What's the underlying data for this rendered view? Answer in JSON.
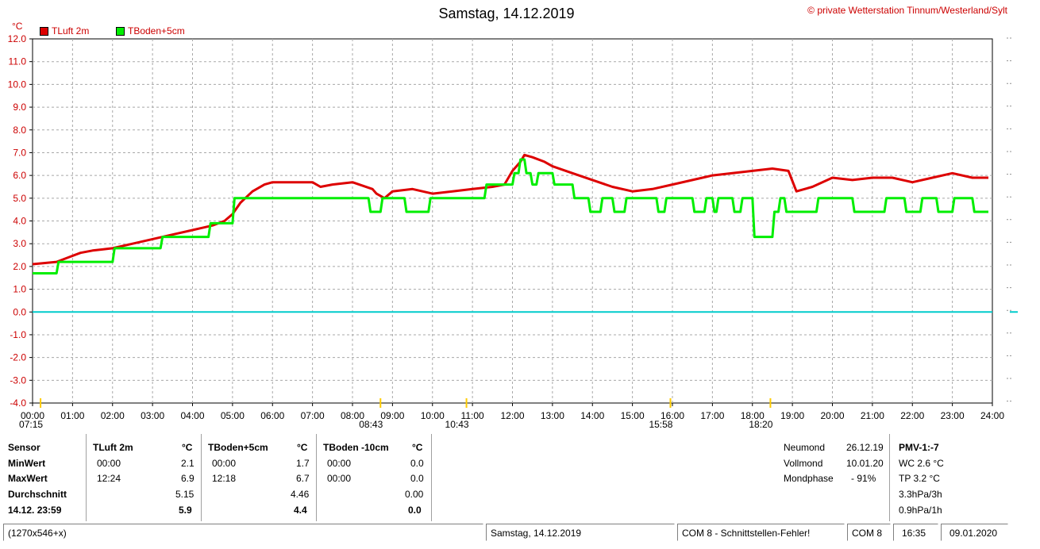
{
  "header": {
    "title": "Samstag, 14.12.2019",
    "copyright": "© private Wetterstation Tinnum/Westerland/Sylt",
    "unit": "°C"
  },
  "legend": [
    {
      "label": "TLuft 2m",
      "color": "#dd0000"
    },
    {
      "label": "TBoden+5cm",
      "color": "#00ee00"
    }
  ],
  "chart_data": {
    "type": "line",
    "title": "Samstag, 14.12.2019",
    "ylabel": "°C",
    "ylim": [
      -4.0,
      12.0
    ],
    "xlim": [
      0,
      24
    ],
    "y_ticks": [
      "12.0",
      "11.0",
      "10.0",
      "9.0",
      "8.0",
      "7.0",
      "6.0",
      "5.0",
      "4.0",
      "3.0",
      "2.0",
      "1.0",
      "0.0",
      "-1.0",
      "-2.0",
      "-3.0",
      "-4.0"
    ],
    "x_ticks": [
      "00:00",
      "01:00",
      "02:00",
      "03:00",
      "04:00",
      "05:00",
      "06:00",
      "07:00",
      "08:00",
      "09:00",
      "10:00",
      "11:00",
      "12:00",
      "13:00",
      "14:00",
      "15:00",
      "16:00",
      "17:00",
      "18:00",
      "19:00",
      "20:00",
      "21:00",
      "22:00",
      "23:00",
      "24:00"
    ],
    "grid": true,
    "zero_line_color": "#00cccc",
    "series": [
      {
        "name": "TLuft 2m",
        "color": "#dd0000",
        "x": [
          0,
          0.6,
          0.9,
          1.2,
          1.5,
          2.0,
          2.5,
          3.0,
          3.5,
          4.0,
          4.5,
          4.8,
          5.0,
          5.2,
          5.5,
          5.8,
          6.0,
          6.5,
          7.0,
          7.2,
          7.5,
          8.0,
          8.5,
          8.6,
          8.8,
          9.0,
          9.5,
          10.0,
          10.5,
          11.0,
          11.5,
          11.8,
          12.0,
          12.2,
          12.3,
          12.5,
          12.8,
          13.0,
          13.5,
          14.0,
          14.5,
          15.0,
          15.5,
          16.0,
          16.5,
          17.0,
          17.5,
          18.0,
          18.5,
          18.9,
          19.1,
          19.5,
          20.0,
          20.5,
          21.0,
          21.5,
          22.0,
          22.5,
          23.0,
          23.5,
          23.9
        ],
        "values": [
          2.1,
          2.2,
          2.4,
          2.6,
          2.7,
          2.8,
          3.0,
          3.2,
          3.4,
          3.6,
          3.8,
          4.0,
          4.3,
          4.8,
          5.3,
          5.6,
          5.7,
          5.7,
          5.7,
          5.5,
          5.6,
          5.7,
          5.4,
          5.2,
          5.0,
          5.3,
          5.4,
          5.2,
          5.3,
          5.4,
          5.5,
          5.6,
          6.2,
          6.6,
          6.9,
          6.8,
          6.6,
          6.4,
          6.1,
          5.8,
          5.5,
          5.3,
          5.4,
          5.6,
          5.8,
          6.0,
          6.1,
          6.2,
          6.3,
          6.2,
          5.3,
          5.5,
          5.9,
          5.8,
          5.9,
          5.9,
          5.7,
          5.9,
          6.1,
          5.9,
          5.9
        ]
      },
      {
        "name": "TBoden+5cm",
        "color": "#00ee00",
        "x": [
          0,
          0.6,
          0.65,
          2.0,
          2.05,
          3.2,
          3.25,
          4.4,
          4.45,
          5.0,
          5.05,
          8.4,
          8.45,
          8.7,
          8.75,
          9.3,
          9.35,
          9.9,
          9.95,
          11.3,
          11.35,
          12.0,
          12.05,
          12.15,
          12.2,
          12.3,
          12.35,
          12.45,
          12.5,
          12.6,
          12.65,
          13.0,
          13.05,
          13.5,
          13.55,
          13.9,
          13.95,
          14.2,
          14.25,
          14.5,
          14.55,
          14.8,
          14.85,
          15.6,
          15.65,
          15.8,
          15.85,
          16.5,
          16.55,
          16.8,
          16.85,
          17.0,
          17.05,
          17.1,
          17.15,
          17.5,
          17.55,
          17.7,
          17.75,
          18.0,
          18.05,
          18.5,
          18.55,
          18.65,
          18.7,
          18.8,
          18.85,
          19.6,
          19.65,
          20.5,
          20.55,
          21.3,
          21.35,
          21.8,
          21.85,
          22.2,
          22.25,
          22.6,
          22.65,
          23.0,
          23.05,
          23.5,
          23.55,
          23.9
        ],
        "values": [
          1.7,
          1.7,
          2.2,
          2.2,
          2.8,
          2.8,
          3.3,
          3.3,
          3.9,
          3.9,
          5.0,
          5.0,
          4.4,
          4.4,
          5.0,
          5.0,
          4.4,
          4.4,
          5.0,
          5.0,
          5.6,
          5.6,
          6.1,
          6.1,
          6.7,
          6.7,
          6.1,
          6.1,
          5.6,
          5.6,
          6.1,
          6.1,
          5.6,
          5.6,
          5.0,
          5.0,
          4.4,
          4.4,
          5.0,
          5.0,
          4.4,
          4.4,
          5.0,
          5.0,
          4.4,
          4.4,
          5.0,
          5.0,
          4.4,
          4.4,
          5.0,
          5.0,
          4.4,
          4.4,
          5.0,
          5.0,
          4.4,
          4.4,
          5.0,
          5.0,
          3.3,
          3.3,
          4.4,
          4.4,
          5.0,
          5.0,
          4.4,
          4.4,
          5.0,
          5.0,
          4.4,
          4.4,
          5.0,
          5.0,
          4.4,
          4.4,
          5.0,
          5.0,
          4.4,
          4.4,
          5.0,
          5.0,
          4.4,
          4.4
        ]
      }
    ],
    "events": [
      {
        "label": "07:15",
        "x": 0.2,
        "row": "low"
      },
      {
        "label": "08:43",
        "x": 8.7,
        "row": "low"
      },
      {
        "label": "10:43",
        "x": 10.85,
        "row": "low"
      },
      {
        "label": "15:58",
        "x": 15.95,
        "row": "low"
      },
      {
        "label": "18:20",
        "x": 18.45,
        "row": "low"
      }
    ]
  },
  "stats": {
    "row_labels": [
      "Sensor",
      "MinWert",
      "MaxWert",
      "Durchschnitt",
      "14.12. 23:59"
    ],
    "sensors": [
      {
        "name": "TLuft 2m",
        "unit": "°C",
        "min_time": "00:00",
        "min": "2.1",
        "max_time": "12:24",
        "max": "6.9",
        "avg": "5.15",
        "current": "5.9"
      },
      {
        "name": "TBoden+5cm",
        "unit": "°C",
        "min_time": "00:00",
        "min": "1.7",
        "max_time": "12:18",
        "max": "6.7",
        "avg": "4.46",
        "current": "4.4"
      },
      {
        "name": "TBoden -10cm",
        "unit": "°C",
        "min_time": "00:00",
        "min": "0.0",
        "max_time": "00:00",
        "max": "0.0",
        "avg": "0.00",
        "current": "0.0"
      }
    ],
    "moon": {
      "labels": [
        "Neumond",
        "Vollmond",
        "Mondphase"
      ],
      "values": [
        "26.12.19",
        "10.01.20",
        "- 91%"
      ]
    },
    "pmv": {
      "title": "PMV-1:-7",
      "lines": [
        "WC 2.6 °C",
        "TP 3.2 °C",
        "3.3hPa/3h",
        "0.9hPa/1h"
      ]
    }
  },
  "statusbar": {
    "size": "(1270x546+x)",
    "date": "Samstag, 14.12.2019",
    "com_error": "COM 8 - Schnittstellen-Fehler!",
    "port": "COM 8",
    "time": "16:35",
    "today": "09.01.2020"
  }
}
